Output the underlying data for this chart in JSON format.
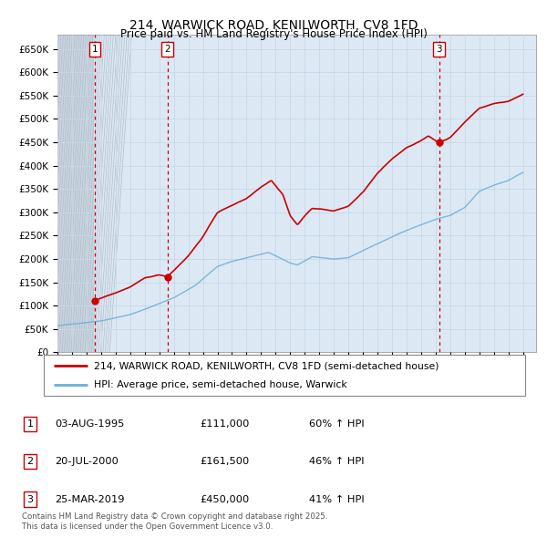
{
  "title": "214, WARWICK ROAD, KENILWORTH, CV8 1FD",
  "subtitle": "Price paid vs. HM Land Registry's House Price Index (HPI)",
  "hpi_color": "#6baed6",
  "price_color": "#cc0000",
  "vline_color": "#cc0000",
  "grid_color": "#c8d8e8",
  "bg_color": "#dce9f5",
  "hatch_bg": "#c8d4e0",
  "sale_year_nums": [
    1995.586,
    2000.553,
    2019.228
  ],
  "sale_prices": [
    111000,
    161500,
    450000
  ],
  "sale_labels": [
    "1",
    "2",
    "3"
  ],
  "legend_line1": "214, WARWICK ROAD, KENILWORTH, CV8 1FD (semi-detached house)",
  "legend_line2": "HPI: Average price, semi-detached house, Warwick",
  "table_entries": [
    {
      "label": "1",
      "date": "03-AUG-1995",
      "price": "£111,000",
      "change": "60% ↑ HPI"
    },
    {
      "label": "2",
      "date": "20-JUL-2000",
      "price": "£161,500",
      "change": "46% ↑ HPI"
    },
    {
      "label": "3",
      "date": "25-MAR-2019",
      "price": "£450,000",
      "change": "41% ↑ HPI"
    }
  ],
  "footer": "Contains HM Land Registry data © Crown copyright and database right 2025.\nThis data is licensed under the Open Government Licence v3.0.",
  "ylim": [
    0,
    680000
  ],
  "xlim": [
    1993.0,
    2025.9
  ],
  "yticks": [
    0,
    50000,
    100000,
    150000,
    200000,
    250000,
    300000,
    350000,
    400000,
    450000,
    500000,
    550000,
    600000,
    650000
  ],
  "ytick_labels": [
    "£0",
    "£50K",
    "£100K",
    "£150K",
    "£200K",
    "£250K",
    "£300K",
    "£350K",
    "£400K",
    "£450K",
    "£500K",
    "£550K",
    "£600K",
    "£650K"
  ]
}
